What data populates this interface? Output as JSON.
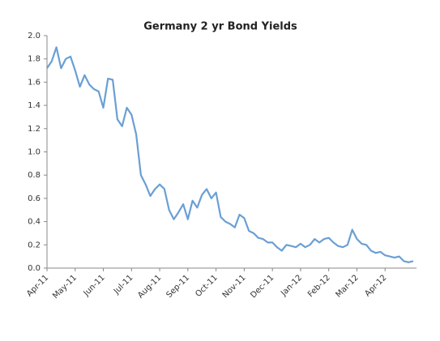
{
  "chart_data": {
    "type": "line",
    "title": "Germany 2 yr Bond Yields",
    "categories": [
      "Apr-11",
      null,
      null,
      null,
      null,
      null,
      "May-11",
      null,
      null,
      null,
      null,
      null,
      "Jun-11",
      null,
      null,
      null,
      null,
      null,
      "Jul-11",
      null,
      null,
      null,
      null,
      null,
      "Aug-11",
      null,
      null,
      null,
      null,
      null,
      "Sep-11",
      null,
      null,
      null,
      null,
      null,
      "Oct-11",
      null,
      null,
      null,
      null,
      null,
      "Nov-11",
      null,
      null,
      null,
      null,
      null,
      "Dec-11",
      null,
      null,
      null,
      null,
      null,
      "Jan-12",
      null,
      null,
      null,
      null,
      null,
      "Feb-12",
      null,
      null,
      null,
      null,
      null,
      "Mar-12",
      null,
      null,
      null,
      null,
      null,
      "Apr-12",
      null,
      null,
      null,
      null,
      null,
      null
    ],
    "series": [
      {
        "color": "#6a9fd4",
        "values": [
          1.72,
          1.78,
          1.9,
          1.72,
          1.8,
          1.82,
          1.7,
          1.56,
          1.66,
          1.58,
          1.54,
          1.52,
          1.38,
          1.63,
          1.62,
          1.28,
          1.22,
          1.38,
          1.32,
          1.15,
          0.8,
          0.72,
          0.62,
          0.68,
          0.72,
          0.68,
          0.5,
          0.42,
          0.48,
          0.55,
          0.42,
          0.58,
          0.52,
          0.63,
          0.68,
          0.6,
          0.65,
          0.44,
          0.4,
          0.38,
          0.35,
          0.46,
          0.43,
          0.32,
          0.3,
          0.26,
          0.25,
          0.22,
          0.22,
          0.18,
          0.15,
          0.2,
          0.19,
          0.18,
          0.21,
          0.18,
          0.2,
          0.25,
          0.22,
          0.25,
          0.26,
          0.22,
          0.19,
          0.18,
          0.2,
          0.33,
          0.25,
          0.21,
          0.2,
          0.15,
          0.13,
          0.14,
          0.11,
          0.1,
          0.09,
          0.1,
          0.06,
          0.05,
          0.06
        ]
      }
    ],
    "ylim": [
      0,
      2
    ],
    "yticks": [
      {
        "value": 0,
        "label": "0.0"
      },
      0.2,
      0.4,
      0.6,
      0.8,
      {
        "value": 1,
        "label": "1.0"
      },
      1.2,
      1.4,
      1.6,
      1.8,
      {
        "value": 2,
        "label": "2.0"
      }
    ],
    "grid": false
  }
}
